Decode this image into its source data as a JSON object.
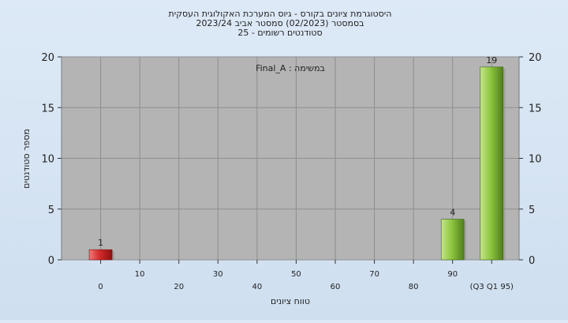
{
  "chart_data": {
    "type": "bar",
    "title_lines": [
      "היסטוגרמת ציונים בקורס - גיוס המערכת האקולוגית העסקית",
      "בסמסטר  (02/2023)  סמסטר אביב 2023/24",
      "סטודנטים רשומים - 25"
    ],
    "annotation": "במשימה : Final_A",
    "xlabel": "טווח ציונים",
    "ylabel": "מספר סטודנטים",
    "ylim": [
      0,
      20
    ],
    "yticks": [
      0,
      5,
      10,
      15,
      20
    ],
    "x_tick_labels": [
      {
        "label": "0",
        "value": 0
      },
      {
        "label": "10",
        "value": 10
      },
      {
        "label": "20",
        "value": 20
      },
      {
        "label": "30",
        "value": 30
      },
      {
        "label": "40",
        "value": 40
      },
      {
        "label": "50",
        "value": 50
      },
      {
        "label": "60",
        "value": 60
      },
      {
        "label": "70",
        "value": 70
      },
      {
        "label": "80",
        "value": 80
      },
      {
        "label": "90",
        "value": 90
      },
      {
        "label": "(Q3 Q1 95)",
        "value": 100
      }
    ],
    "x_range": [
      -10,
      107
    ],
    "bars": [
      {
        "x": 0,
        "value": 1,
        "label": "1",
        "color": "#d42a2a"
      },
      {
        "x": 90,
        "value": 4,
        "label": "4",
        "color": "#8ec63f"
      },
      {
        "x": 100,
        "value": 19,
        "label": "19",
        "color": "#8ec63f"
      }
    ],
    "grid": true,
    "plot_background": "#b4b4b4"
  }
}
